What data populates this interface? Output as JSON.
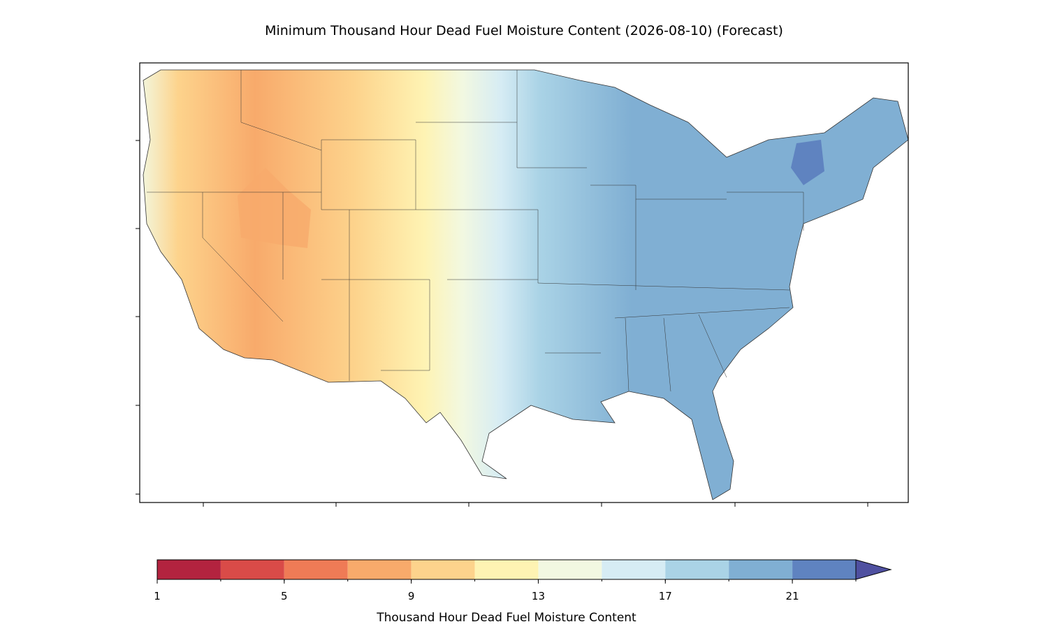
{
  "chart_data": {
    "type": "map",
    "title": "Minimum Thousand Hour Dead Fuel Moisture Content (2026-08-10) (Forecast)",
    "colorbar": {
      "label": "Thousand Hour Dead Fuel Moisture Content",
      "levels": [
        1,
        3,
        5,
        7,
        9,
        11,
        13,
        15,
        17,
        19,
        21,
        23
      ],
      "colors": [
        "#b3233f",
        "#d94b48",
        "#ef7b56",
        "#f8aa6b",
        "#fdd38c",
        "#fef3b3",
        "#f2f8e1",
        "#d6ecf4",
        "#aad3e6",
        "#80afd3",
        "#5f83c0"
      ],
      "extend_color": "#4f50a0",
      "lim": [
        1,
        23
      ],
      "ticks": [
        1,
        5,
        9,
        13,
        17,
        21
      ]
    }
  }
}
